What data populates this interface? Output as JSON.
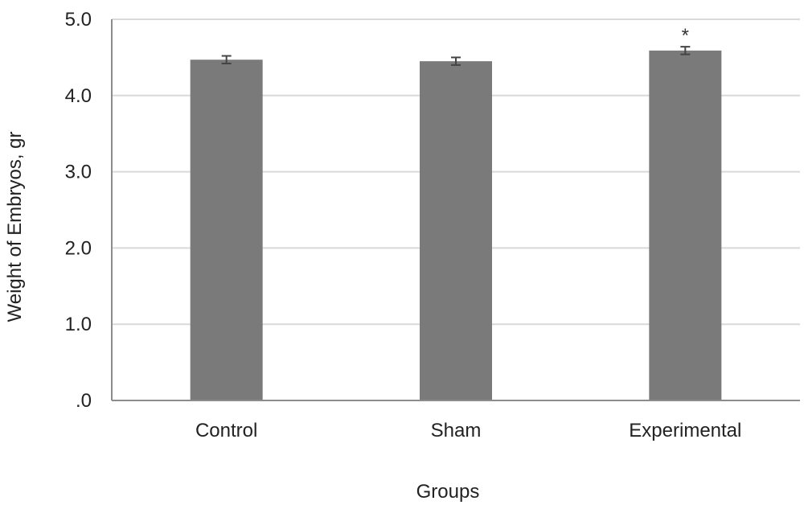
{
  "chart_data": {
    "type": "bar",
    "title": "",
    "xlabel": "Groups",
    "ylabel": "Weight of Embryos, gr",
    "categories": [
      "Control",
      "Sham",
      "Experimental"
    ],
    "values": [
      4.47,
      4.45,
      4.59
    ],
    "error": [
      0.05,
      0.05,
      0.05
    ],
    "annotations": [
      "",
      "",
      "*"
    ],
    "ylim": [
      0,
      5
    ],
    "yticks": [
      0,
      1,
      2,
      3,
      4,
      5
    ],
    "ytick_labels": [
      ".0",
      "1.0",
      "2.0",
      "3.0",
      "4.0",
      "5.0"
    ],
    "grid": true,
    "legend": "none",
    "colors": {
      "bar": "#7a7a7a",
      "grid": "#d9d9d9",
      "axis": "#8c8c8c",
      "error": "#444444"
    }
  }
}
